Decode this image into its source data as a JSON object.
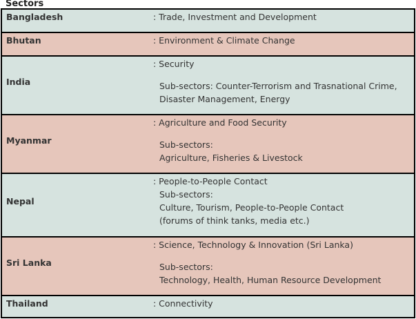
{
  "header": {
    "title": "Sectors"
  },
  "rows": [
    {
      "country": "Bangladesh",
      "sector": ": Trade, Investment and Development"
    },
    {
      "country": "Bhutan",
      "sector": ": Environment & Climate Change"
    },
    {
      "country": "India",
      "sector": ": Security",
      "sub_label": "Sub-sectors: Counter-Terrorism and Trasnational Crime,",
      "sub_line2": "Disaster Management, Energy"
    },
    {
      "country": "Myanmar",
      "sector": ": Agriculture and Food Security",
      "sub_label": "Sub-sectors:",
      "sub_line2": "Agriculture, Fisheries & Livestock"
    },
    {
      "country": "Nepal",
      "sector": ": People-to-People Contact",
      "sub_label": "Sub-sectors:",
      "sub_line2": "Culture, Tourism, People-to-People Contact",
      "sub_line3": "(forums of think tanks, media etc.)"
    },
    {
      "country": "Sri Lanka",
      "sector": ": Science, Technology & Innovation (Sri Lanka)",
      "sub_label": "Sub-sectors:",
      "sub_line2": "Technology, Health, Human Resource Development"
    },
    {
      "country": "Thailand",
      "sector": ": Connectivity"
    }
  ]
}
